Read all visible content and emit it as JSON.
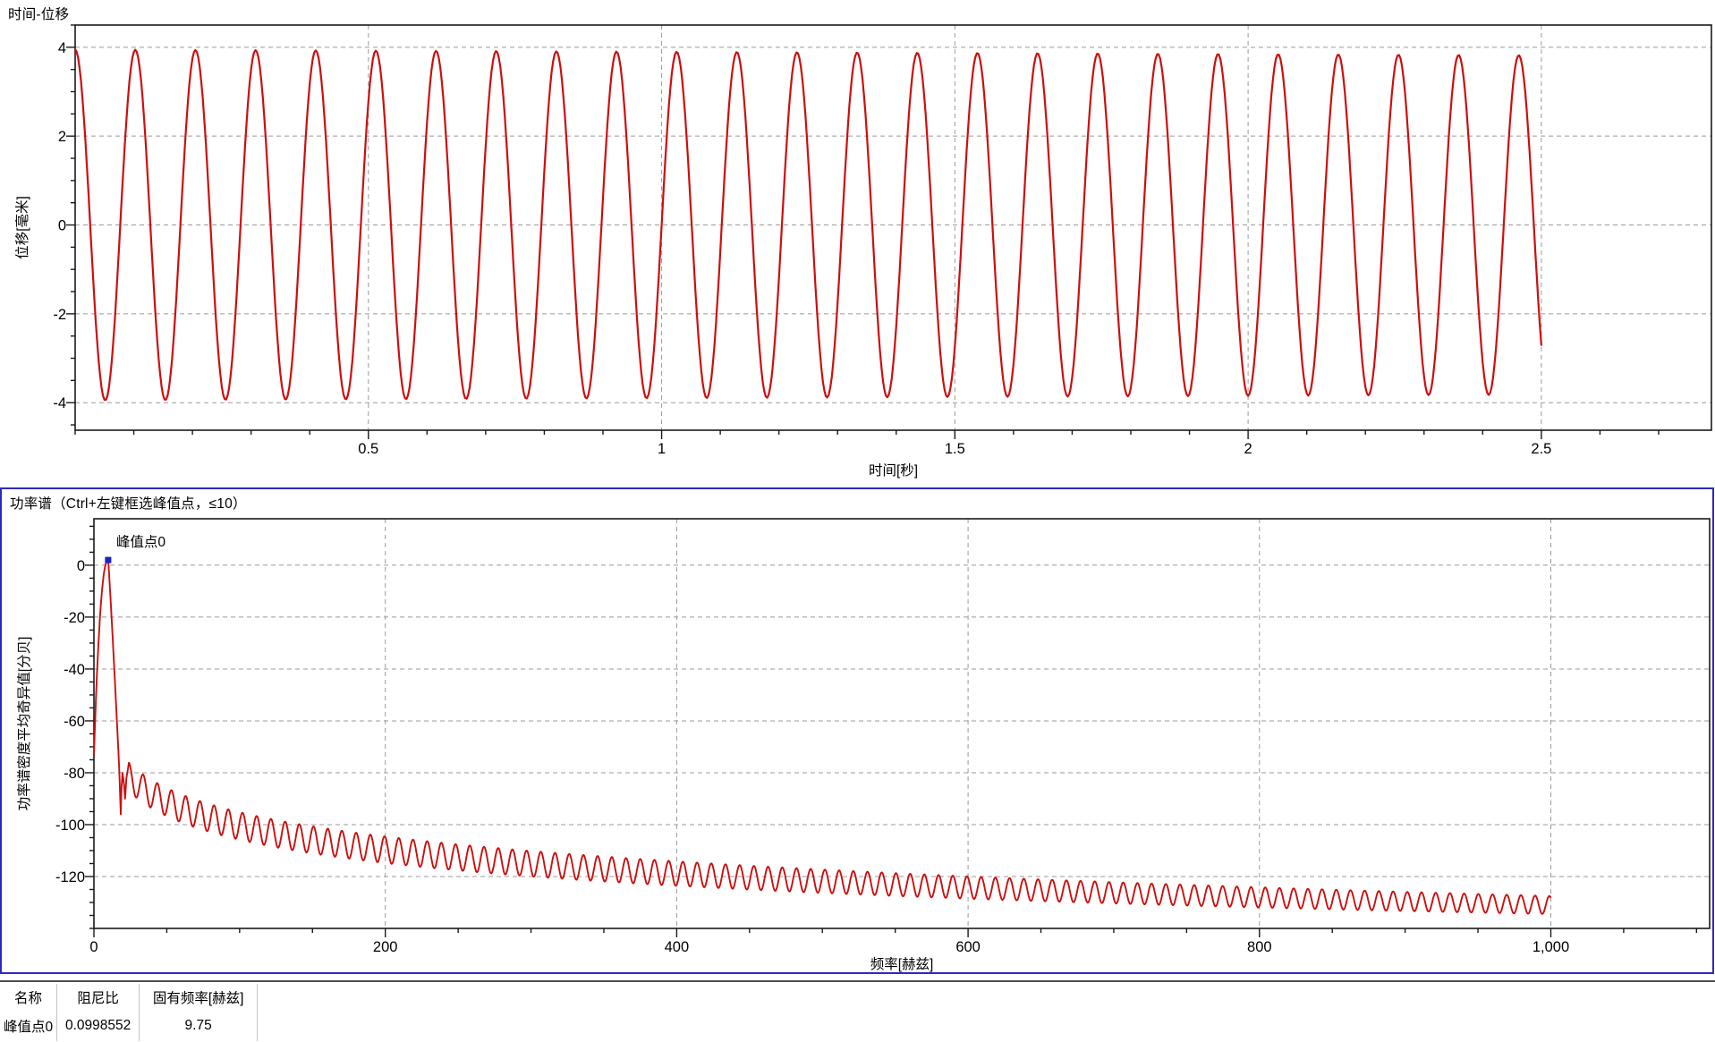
{
  "window": {
    "background": "#ffffff"
  },
  "colors": {
    "curve_red": "#cc0f0f",
    "marker_blue": "#1f1fc8",
    "panel_border_blue": "#2a2ac0",
    "grid_gray": "#9b9b9b",
    "axis_black": "#1a1a1a",
    "table_rule_gray": "#4d4d4d"
  },
  "chart_data": [
    {
      "type": "line",
      "title": "时间-位移",
      "xlabel": "时间[秒]",
      "ylabel": "位移[毫米]",
      "x_ticks": [
        0.5,
        1,
        1.5,
        2,
        2.5
      ],
      "x_tick_labels": [
        "0.5",
        "1",
        "1.5",
        "2",
        "2.5"
      ],
      "x_minor_step": 0.1,
      "y_ticks": [
        4,
        2,
        0,
        -2,
        -4
      ],
      "y_minor_step": 0.5,
      "xlim": [
        0,
        2.79
      ],
      "ylim": [
        -4.62,
        4.5
      ],
      "grid": true,
      "legend": "none",
      "line_color": "#cc0f0f",
      "series": [
        {
          "name": "位移",
          "signal": {
            "kind": "damped_cosine",
            "frequency_hz": 9.75,
            "amplitude_mm_start": 3.95,
            "amplitude_mm_end": 3.82,
            "duration_s": 2.5,
            "phase": "cosine_start_at_max"
          }
        }
      ]
    },
    {
      "type": "line",
      "title": "功率谱（Ctrl+左键框选峰值点，≤10）",
      "xlabel": "频率[赫兹]",
      "ylabel": "功率谱密度平均奇异值[分贝]",
      "x_ticks": [
        0,
        200,
        400,
        600,
        800,
        1000
      ],
      "x_tick_labels": [
        "0",
        "200",
        "400",
        "600",
        "800",
        "1,000"
      ],
      "x_minor_step": 50,
      "y_ticks": [
        0,
        -20,
        -40,
        -60,
        -80,
        -100,
        -120
      ],
      "y_minor_step": 5,
      "xlim": [
        0,
        1109
      ],
      "ylim": [
        -140,
        17.9
      ],
      "grid": true,
      "legend": "none",
      "line_color": "#cc0f0f",
      "peak_marker": {
        "label": "峰值点0",
        "frequency_hz": 9.75,
        "value_db": 2,
        "color": "#1f1fc8"
      },
      "spectrum_shape": {
        "start_db": -73,
        "peak_hz": 9.75,
        "peak_db": 2,
        "pre_notch_hz": 17.5,
        "pre_notch_db": -80,
        "notch_hz": 18.4,
        "notch_db": -96,
        "ripple_start_hz": 24,
        "end_hz": 1000,
        "mean_start_db": -81.6,
        "mean_end_db": -131,
        "ripple_period_hz": 9.75,
        "ripple_amp_start_db": 5.5,
        "ripple_amp_end_db": 3.5
      }
    }
  ],
  "results_table": {
    "headers": [
      "名称",
      "阻尼比",
      "固有频率[赫兹]"
    ],
    "rows": [
      [
        "峰值点0",
        "0.0998552",
        "9.75"
      ]
    ]
  }
}
